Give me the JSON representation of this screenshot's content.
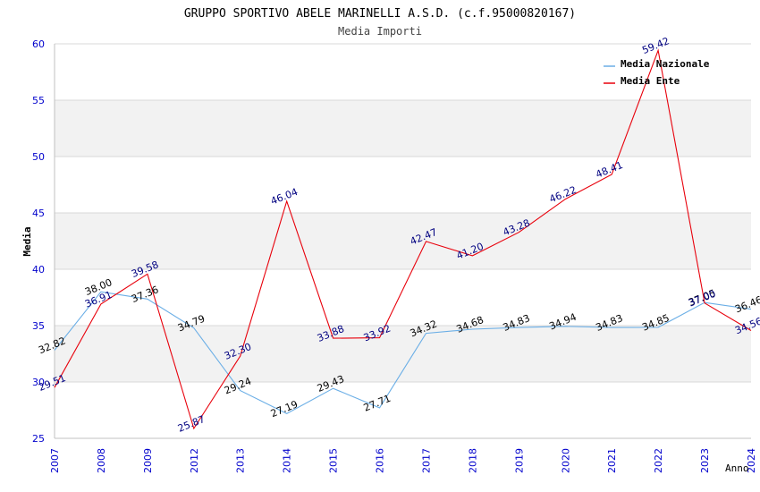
{
  "chart_data": {
    "type": "line",
    "title": "GRUPPO SPORTIVO ABELE MARINELLI A.S.D. (c.f.95000820167)",
    "subtitle": "Media Importi",
    "xlabel": "Anno",
    "ylabel": "Media",
    "ylim": [
      25,
      60
    ],
    "yticks": [
      25,
      30,
      35,
      40,
      45,
      50,
      55,
      60
    ],
    "grid": true,
    "legend_position": "top-right",
    "categories": [
      "2007",
      "2008",
      "2009",
      "2012",
      "2013",
      "2014",
      "2015",
      "2016",
      "2017",
      "2018",
      "2019",
      "2020",
      "2021",
      "2022",
      "2023",
      "2024"
    ],
    "series": [
      {
        "name": "Media Nazionale",
        "color": "#6aaee6",
        "label_color": "#000000",
        "values": [
          32.82,
          38.0,
          37.36,
          34.79,
          29.24,
          27.19,
          29.43,
          27.71,
          34.32,
          34.68,
          34.83,
          34.94,
          34.83,
          34.85,
          37.05,
          36.46
        ],
        "labels": [
          "32.82",
          "38.00",
          "37.36",
          "34.79",
          "29.24",
          "27.19",
          "29.43",
          "27.71",
          "34.32",
          "34.68",
          "34.83",
          "34.94",
          "34.83",
          "34.85",
          "37.05",
          "36.46"
        ]
      },
      {
        "name": "Media Ente",
        "color": "#e8000b",
        "label_color": "#000080",
        "values": [
          29.51,
          36.91,
          39.58,
          25.87,
          32.3,
          46.04,
          33.88,
          33.92,
          42.47,
          41.2,
          43.28,
          46.22,
          48.41,
          59.42,
          37.0,
          34.56
        ],
        "labels": [
          "29.51",
          "36.91",
          "39.58",
          "25.87",
          "32.30",
          "46.04",
          "33.88",
          "33.92",
          "42.47",
          "41.20",
          "43.28",
          "46.22",
          "48.41",
          "59.42",
          "37.00",
          "34.56"
        ]
      }
    ],
    "colors": {
      "band": "#f2f2f2",
      "gridline": "#d8d8d8",
      "axis": "#c0c0c0",
      "tick_text": "#0000cc",
      "title_text": "#000000",
      "subtitle_text": "#444444"
    }
  }
}
